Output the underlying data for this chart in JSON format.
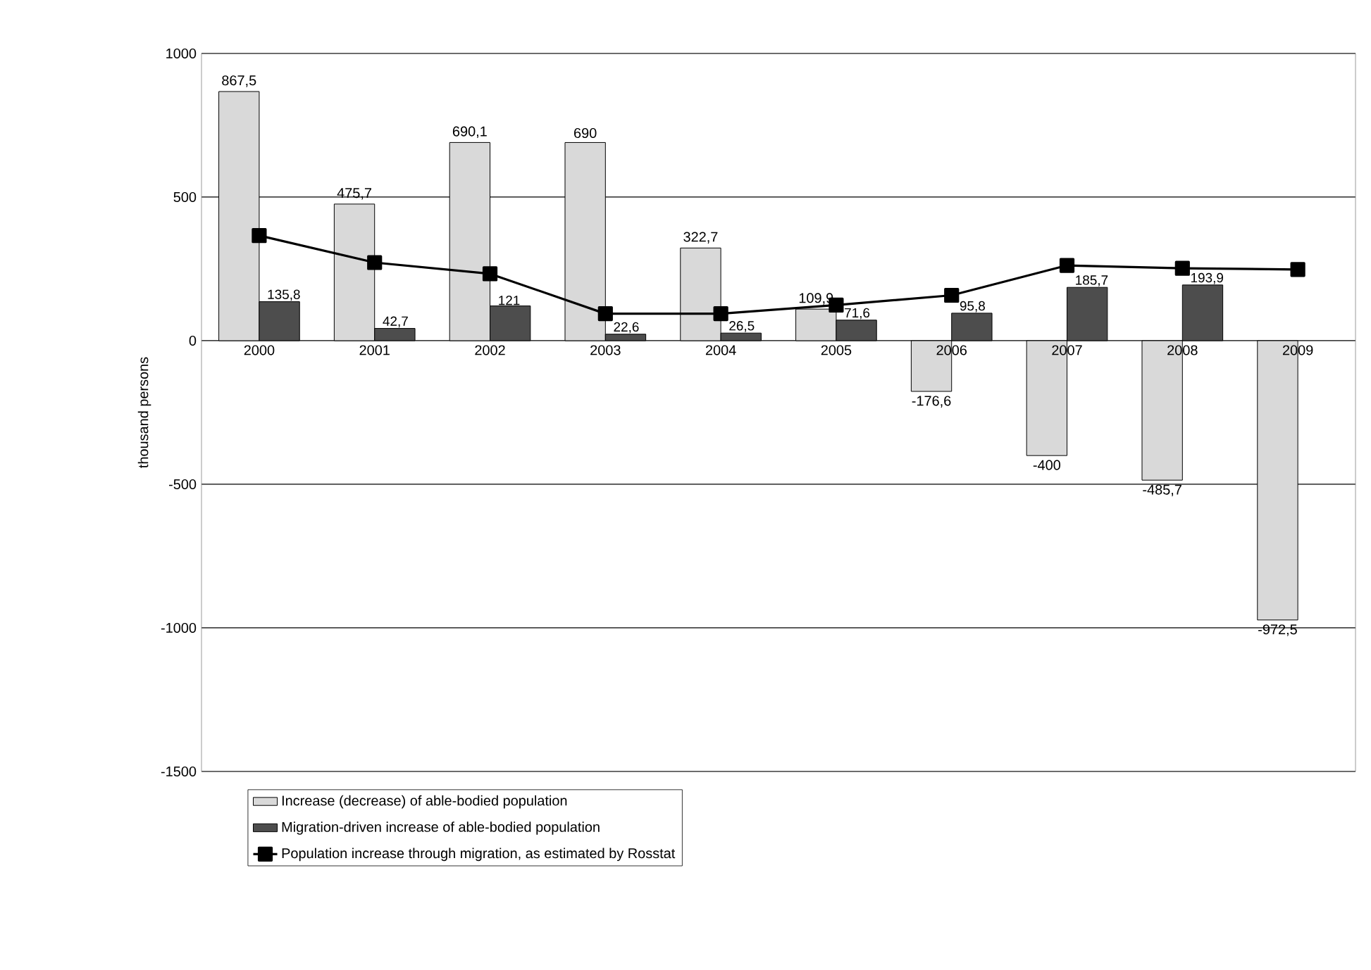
{
  "chart_data": {
    "type": "bar",
    "ylabel": "thousand persons",
    "categories": [
      "2000",
      "2001",
      "2002",
      "2003",
      "2004",
      "2005",
      "2006",
      "2007",
      "2008",
      "2009"
    ],
    "ylim": [
      -1500,
      1000
    ],
    "yticks": [
      -1500,
      -1000,
      -500,
      0,
      500,
      1000
    ],
    "grid": "y",
    "legend": "bottom",
    "series": [
      {
        "name": "Increase (decrease) of able-bodied population",
        "color": "#d9d9d9",
        "values": [
          867.5,
          475.7,
          690.1,
          690,
          322.7,
          109.9,
          -176.6,
          -400,
          -485.7,
          -972.5
        ],
        "value_labels": [
          "867,5",
          "475,7",
          "690,1",
          "690",
          "322,7",
          "109,9",
          "-176,6",
          "-400",
          "-485,7",
          "-972,5"
        ]
      },
      {
        "name": "Migration-driven increase of able-bodied population",
        "color": "#4d4d4d",
        "values": [
          135.8,
          42.7,
          121,
          22.6,
          26.5,
          71.6,
          95.8,
          185.7,
          193.9,
          null
        ],
        "value_labels": [
          "135,8",
          "42,7",
          "121",
          "22,6",
          "26,5",
          "71,6",
          "95,8",
          "185,7",
          "193,9",
          null
        ]
      },
      {
        "name": "Population increase through migration, as estimated by Rosstat",
        "type": "line",
        "color": "#000000",
        "marker": "square",
        "values": [
          366,
          272,
          233,
          94,
          94,
          124,
          158,
          262,
          252,
          248
        ]
      }
    ]
  }
}
